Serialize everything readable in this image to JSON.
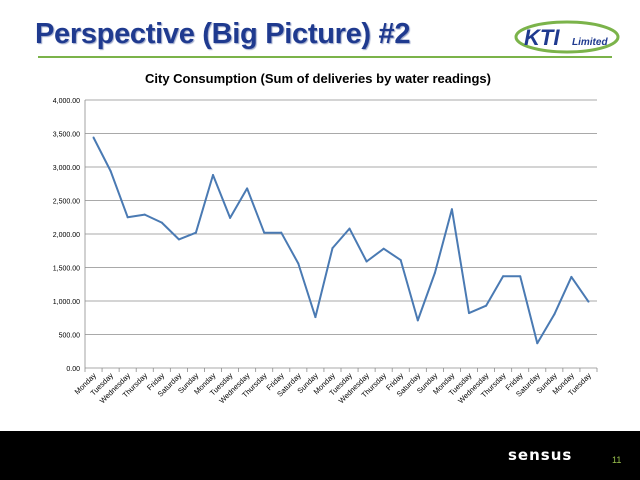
{
  "slide": {
    "title": "Perspective (Big Picture) #2",
    "page_number": "11",
    "logo_text": "KTI",
    "logo_subtext": "Limited",
    "footer_logo_text": "sensus",
    "colors": {
      "title": "#1f3a8f",
      "rule": "#7bb34a",
      "line": "#4a7ab3",
      "footer": "#000000",
      "logo_blue": "#1f3a8f",
      "logo_green": "#7bb34a"
    }
  },
  "chart_data": {
    "type": "line",
    "title": "City Consumption (Sum of deliveries by water readings)",
    "xlabel": "",
    "ylabel": "",
    "ylim": [
      0,
      4000
    ],
    "yticks": [
      "0.00",
      "500.00",
      "1,000.00",
      "1,500.00",
      "2,000.00",
      "2,500.00",
      "3,000.00",
      "3,500.00",
      "4,000.00"
    ],
    "grid": true,
    "categories": [
      "Monday",
      "Tuesday",
      "Wednesday",
      "Thursday",
      "Friday",
      "Saturday",
      "Sunday",
      "Monday",
      "Tuesday",
      "Wednesday",
      "Thursday",
      "Friday",
      "Saturday",
      "Sunday",
      "Monday",
      "Tuesday",
      "Wednesday",
      "Thursday",
      "Friday",
      "Saturday",
      "Sunday",
      "Monday",
      "Tuesday",
      "Wednesday",
      "Thursday",
      "Friday",
      "Saturday",
      "Sunday",
      "Monday",
      "Tuesday"
    ],
    "values": [
      3440,
      2940,
      2250,
      2290,
      2170,
      1920,
      2020,
      2880,
      2240,
      2680,
      2020,
      2020,
      1560,
      760,
      1790,
      2080,
      1590,
      1780,
      1610,
      710,
      1420,
      2370,
      820,
      930,
      1370,
      1370,
      370,
      800,
      1360,
      990
    ]
  }
}
